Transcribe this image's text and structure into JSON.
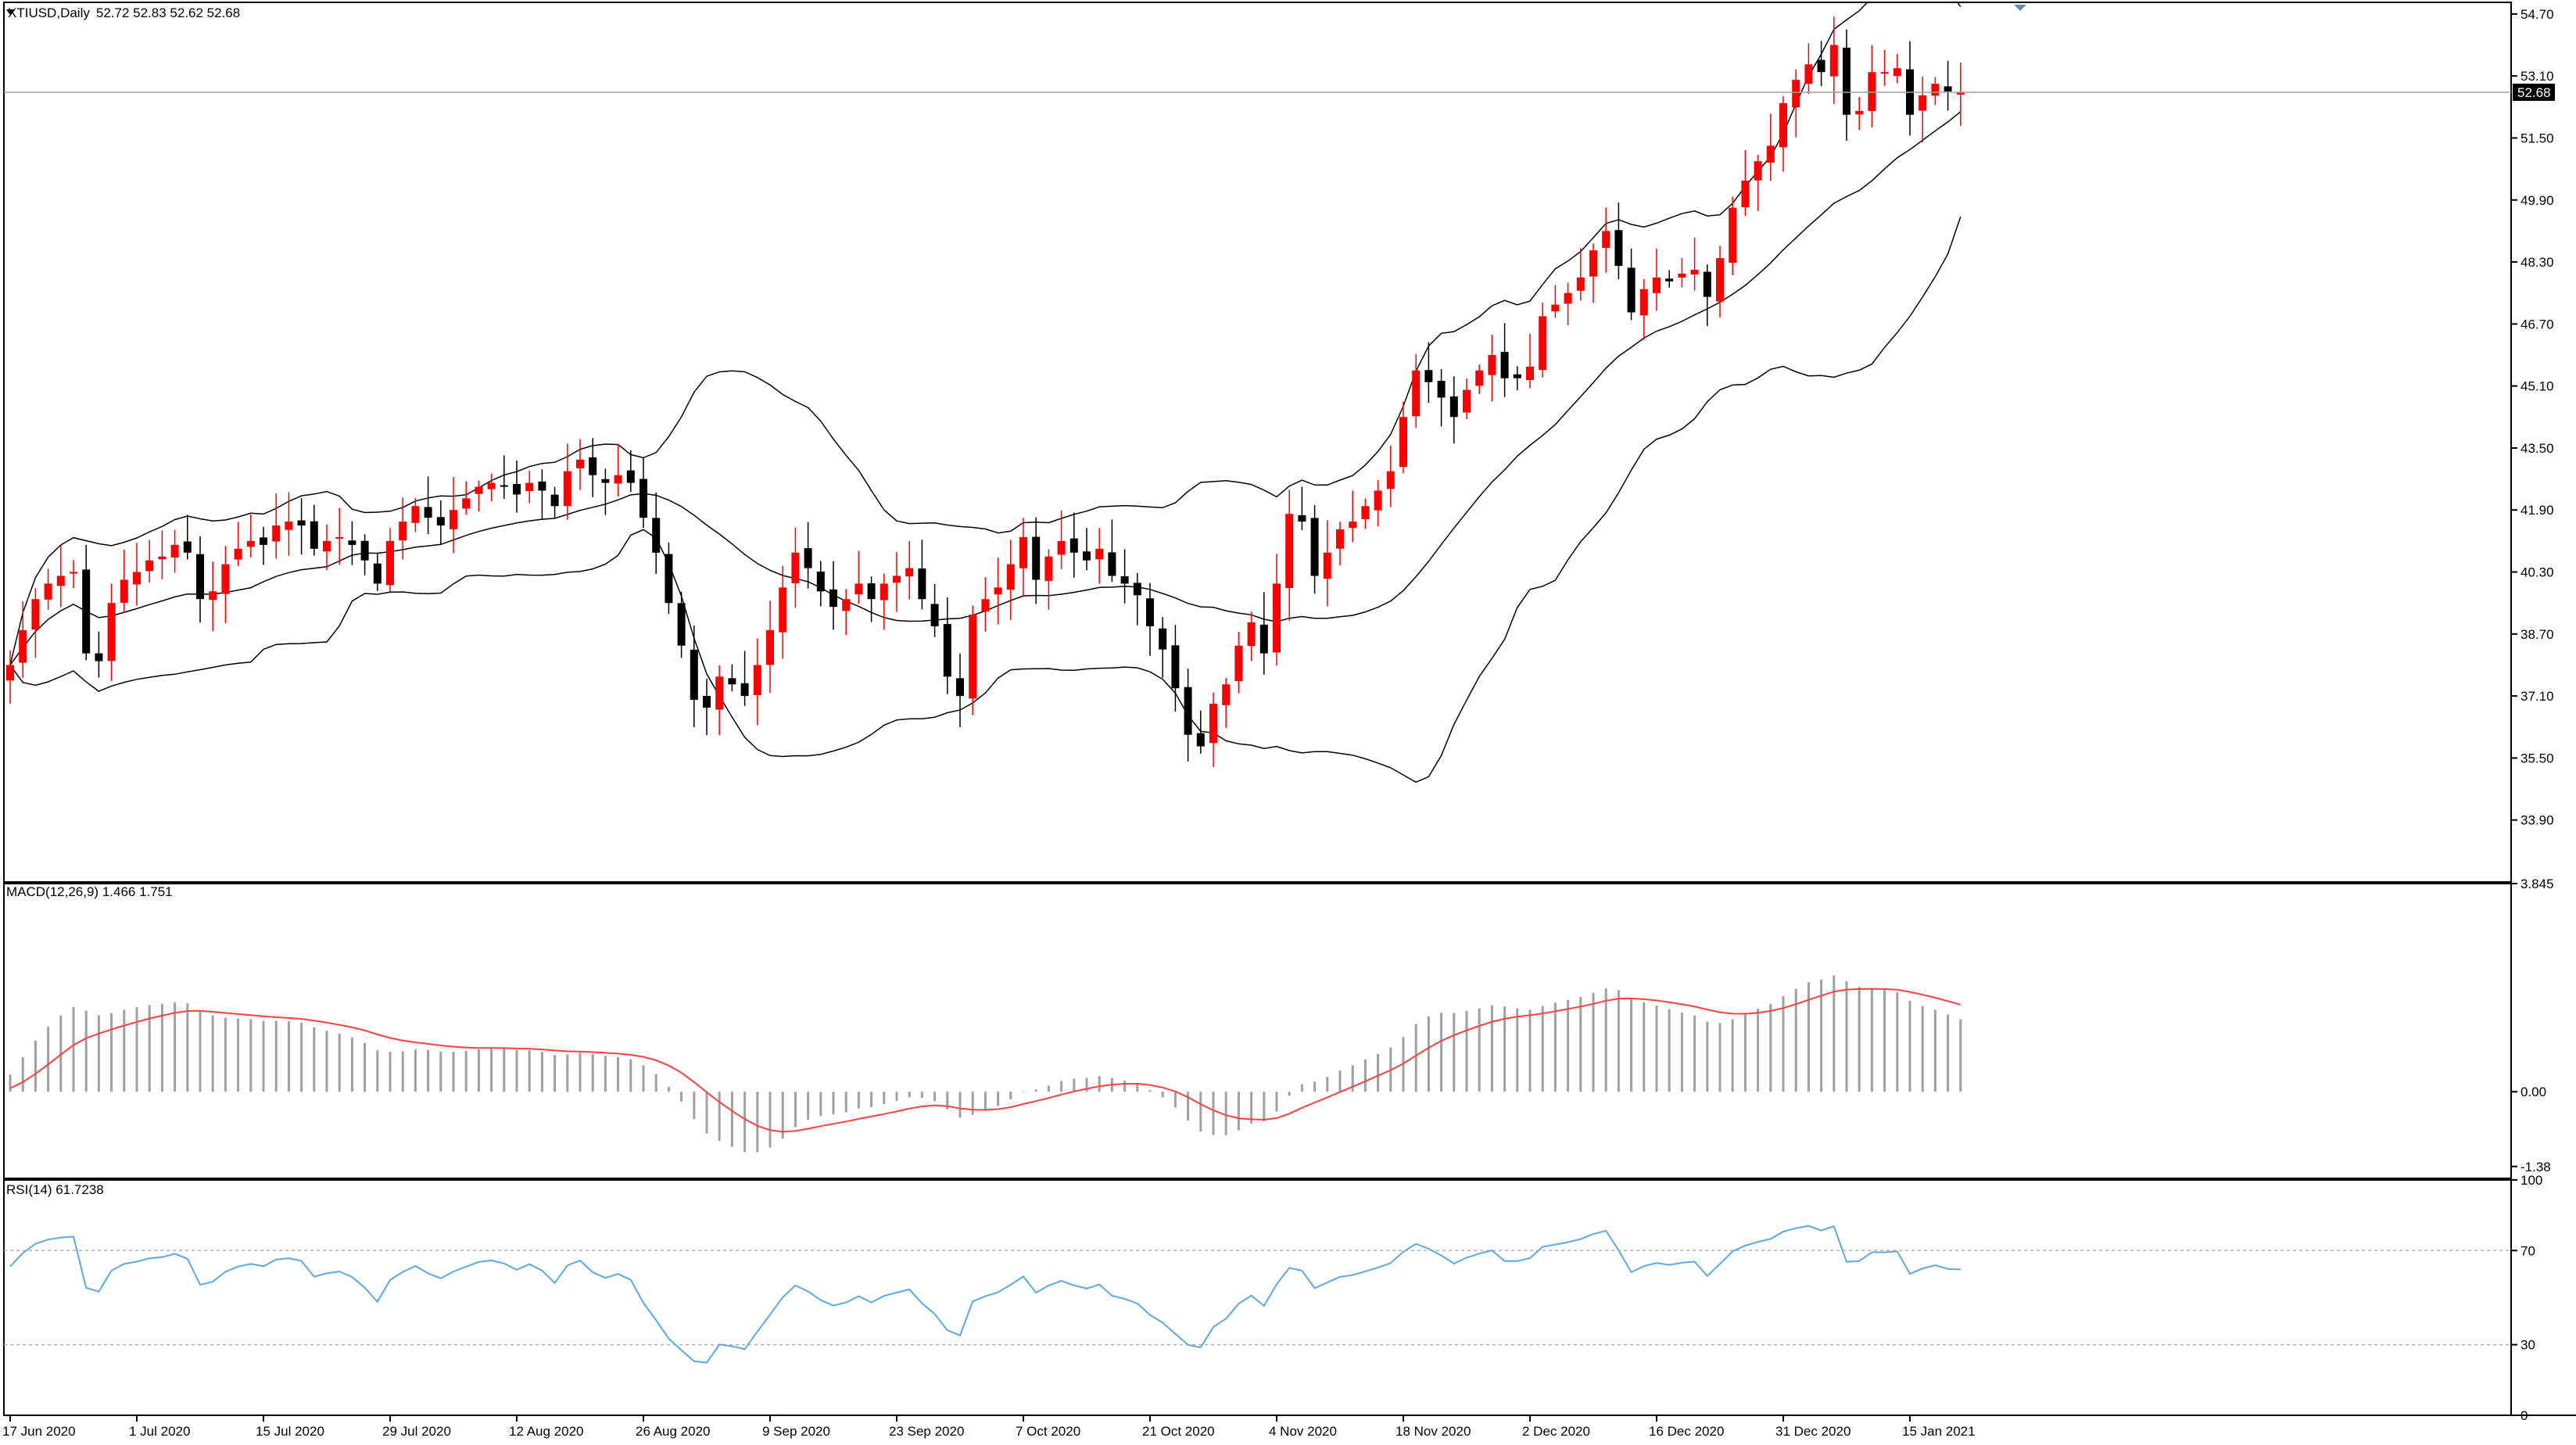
{
  "window": {
    "symbol": "XTIUSD",
    "timeframe": "Daily",
    "ohlc_text": "52.72 52.83 52.62 52.68"
  },
  "colors": {
    "bull": "#ff0000",
    "bear": "#000000",
    "band": "#000000",
    "macd_hist": "#a0a0a0",
    "macd_signal": "#ff4040",
    "rsi_line": "#5aa9e6",
    "level_line": "#b0b0b0",
    "current_price_bg": "#000000"
  },
  "chart_data": [
    {
      "type": "candlestick",
      "title": "XTIUSD,Daily  52.72 52.83 52.62 52.68",
      "current_price": 52.68,
      "current_price_label": "52.68",
      "ylim": [
        32.3,
        55.0
      ],
      "y_ticks": [
        "54.70",
        "53.10",
        "51.50",
        "49.90",
        "48.30",
        "46.70",
        "45.10",
        "43.50",
        "41.90",
        "40.30",
        "38.70",
        "37.10",
        "35.50",
        "33.90"
      ],
      "x_labels": [
        {
          "text": "17 Jun 2020",
          "index": 0
        },
        {
          "text": "1 Jul 2020",
          "index": 10
        },
        {
          "text": "15 Jul 2020",
          "index": 20
        },
        {
          "text": "29 Jul 2020",
          "index": 30
        },
        {
          "text": "12 Aug 2020",
          "index": 40
        },
        {
          "text": "26 Aug 2020",
          "index": 50
        },
        {
          "text": "9 Sep 2020",
          "index": 60
        },
        {
          "text": "23 Sep 2020",
          "index": 70
        },
        {
          "text": "7 Oct 2020",
          "index": 80
        },
        {
          "text": "21 Oct 2020",
          "index": 90
        },
        {
          "text": "4 Nov 2020",
          "index": 100
        },
        {
          "text": "18 Nov 2020",
          "index": 110
        },
        {
          "text": "2 Dec 2020",
          "index": 120
        },
        {
          "text": "16 Dec 2020",
          "index": 130
        },
        {
          "text": "31 Dec 2020",
          "index": 140
        },
        {
          "text": "15 Jan 2021",
          "index": 150
        }
      ],
      "closes": [
        37.9,
        38.8,
        39.6,
        40.0,
        40.2,
        40.3,
        38.2,
        38.0,
        39.5,
        40.1,
        40.3,
        40.6,
        40.7,
        41.0,
        40.8,
        39.6,
        39.8,
        40.5,
        40.9,
        41.1,
        41.0,
        41.5,
        41.6,
        41.5,
        40.9,
        41.1,
        41.2,
        41.0,
        40.6,
        40.0,
        41.1,
        41.6,
        42.0,
        41.7,
        41.5,
        41.9,
        42.2,
        42.5,
        42.6,
        42.5,
        42.3,
        42.6,
        42.4,
        42.0,
        42.9,
        43.2,
        42.8,
        42.6,
        42.8,
        42.6,
        41.7,
        40.8,
        39.5,
        38.4,
        37.0,
        36.8,
        37.6,
        37.4,
        37.1,
        37.9,
        38.8,
        39.9,
        40.8,
        40.4,
        39.8,
        39.4,
        39.6,
        40.0,
        39.6,
        40.0,
        40.2,
        40.4,
        39.6,
        38.9,
        37.6,
        37.1,
        39.2,
        39.6,
        39.9,
        40.5,
        41.2,
        40.1,
        40.7,
        41.1,
        40.8,
        40.6,
        40.9,
        40.2,
        40.0,
        39.7,
        38.9,
        38.3,
        37.3,
        36.1,
        35.8,
        36.9,
        37.4,
        38.4,
        39.0,
        38.2,
        40.0,
        41.8,
        41.6,
        40.2,
        40.8,
        41.4,
        41.6,
        42.0,
        42.4,
        42.9,
        44.3,
        45.5,
        45.2,
        44.8,
        44.3,
        45.0,
        45.5,
        45.9,
        45.3,
        45.3,
        45.6,
        46.9,
        47.2,
        47.5,
        47.9,
        48.6,
        49.1,
        48.2,
        47.0,
        47.6,
        47.9,
        47.8,
        48.0,
        48.1,
        47.4,
        48.4,
        49.7,
        50.4,
        50.9,
        51.3,
        52.4,
        53.0,
        53.4,
        53.2,
        53.9,
        52.1,
        52.2,
        53.2,
        53.2,
        53.3,
        52.1,
        52.6,
        52.9,
        52.7,
        52.68
      ],
      "series": [
        {
          "name": "bands",
          "style": "envelope"
        }
      ]
    },
    {
      "type": "bar",
      "title": "MACD(12,26,9) 1.466 1.751",
      "ylim": [
        -1.6,
        3.845
      ],
      "y_ticks": [
        "3.845",
        "0.00",
        "-1.38"
      ]
    },
    {
      "type": "line",
      "title": "RSI(14) 61.7238",
      "ylim": [
        0,
        100
      ],
      "y_ticks": [
        "100",
        "70",
        "30",
        "0"
      ],
      "levels": [
        70,
        30
      ]
    }
  ]
}
